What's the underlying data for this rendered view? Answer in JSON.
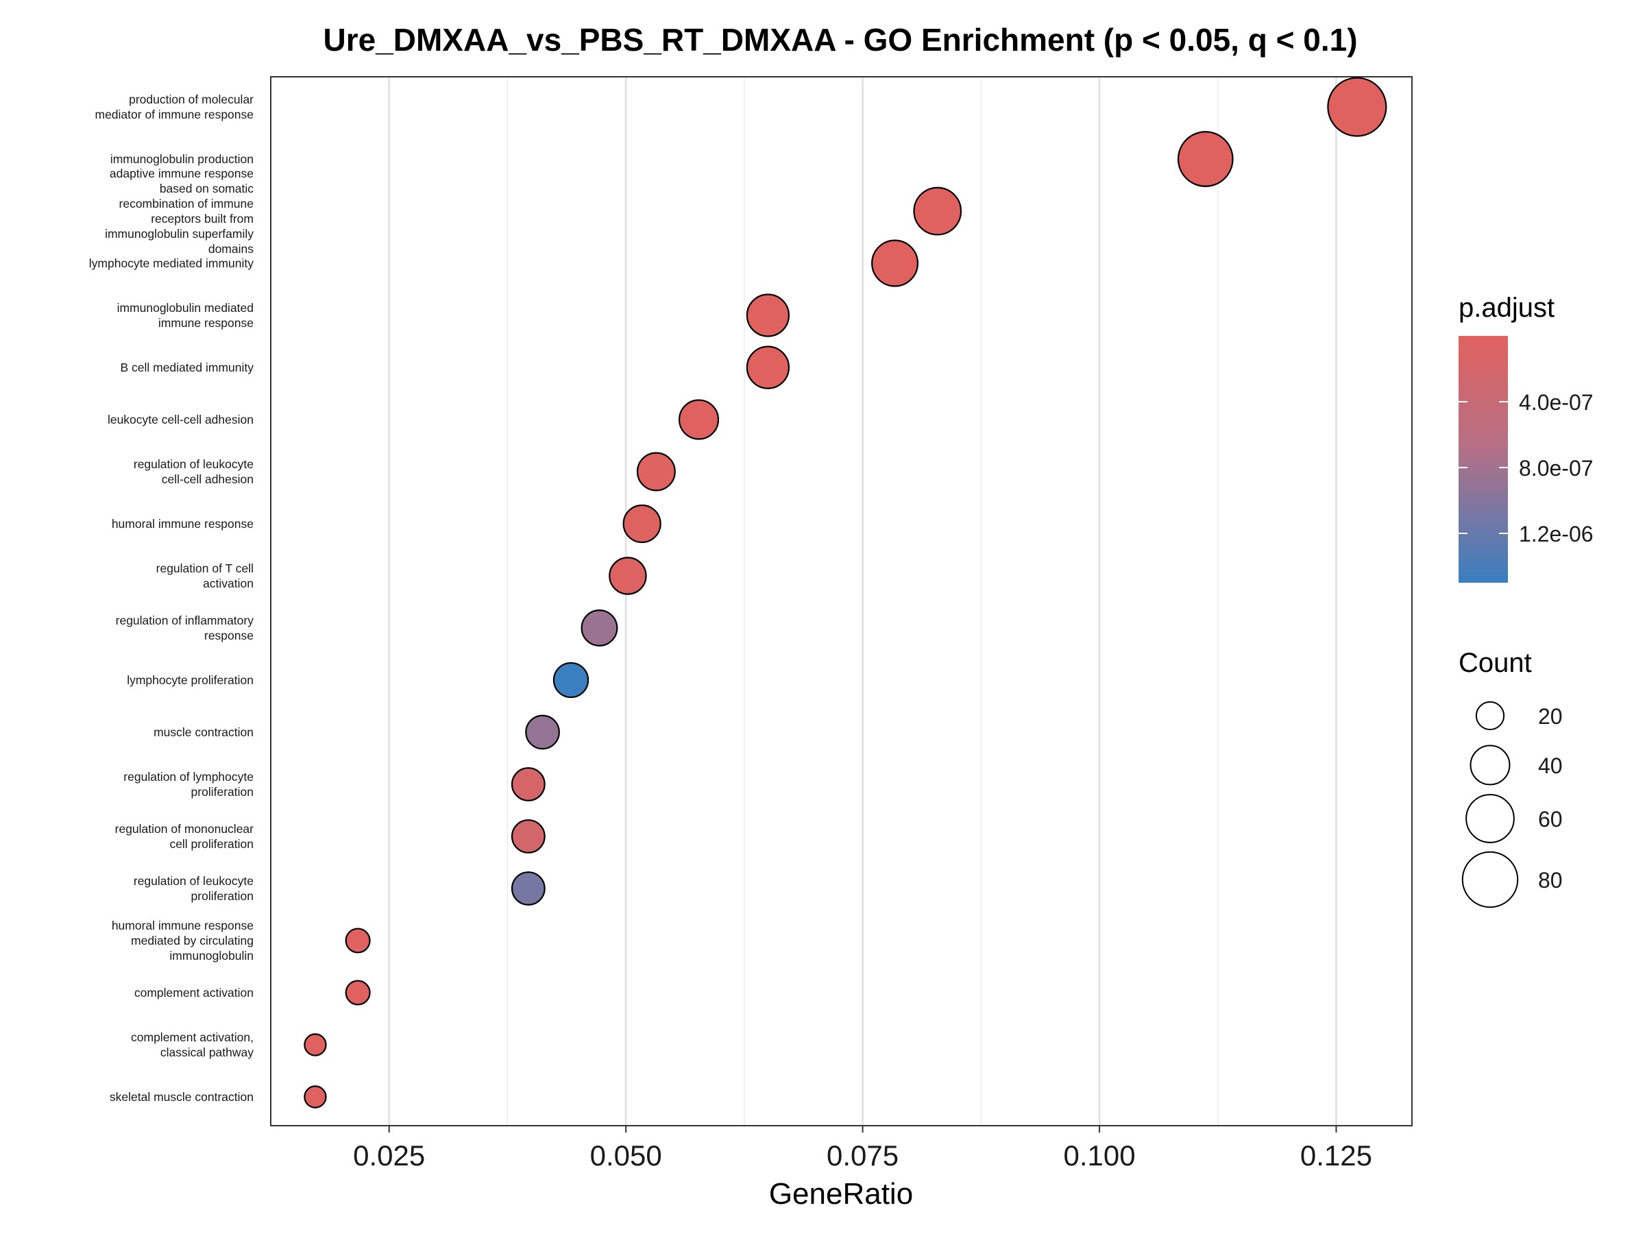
{
  "chart_data": {
    "type": "scatter",
    "title": "Ure_DMXAA_vs_PBS_RT_DMXAA - GO Enrichment (p < 0.05, q < 0.1)",
    "xlabel": "GeneRatio",
    "ylabel": "",
    "xlim": [
      0.0125,
      0.133
    ],
    "xticks": [
      {
        "value": 0.025,
        "label": "0.025"
      },
      {
        "value": 0.05,
        "label": "0.050"
      },
      {
        "value": 0.075,
        "label": "0.075"
      },
      {
        "value": 0.1,
        "label": "0.100"
      },
      {
        "value": 0.125,
        "label": "0.125"
      }
    ],
    "grid": true,
    "categories": [
      {
        "lines": [
          "production of molecular",
          "mediator of immune response"
        ],
        "x": 0.1272,
        "count": 89,
        "p_adjust": 1e-09
      },
      {
        "lines": [
          "immunoglobulin production"
        ],
        "x": 0.1112,
        "count": 78,
        "p_adjust": 1e-09
      },
      {
        "lines": [
          "adaptive immune response",
          "based on somatic",
          "recombination of immune",
          "receptors built from",
          "immunoglobulin superfamily",
          "domains"
        ],
        "x": 0.0829,
        "count": 58,
        "p_adjust": 2e-09
      },
      {
        "lines": [
          "lymphocyte mediated immunity"
        ],
        "x": 0.0784,
        "count": 55,
        "p_adjust": 3e-09
      },
      {
        "lines": [
          "immunoglobulin mediated",
          "immune response"
        ],
        "x": 0.065,
        "count": 46,
        "p_adjust": 5e-09
      },
      {
        "lines": [
          "B cell mediated immunity"
        ],
        "x": 0.065,
        "count": 46,
        "p_adjust": 5e-09
      },
      {
        "lines": [
          "leukocyte cell-cell adhesion"
        ],
        "x": 0.0577,
        "count": 40,
        "p_adjust": 2e-08
      },
      {
        "lines": [
          "regulation of leukocyte",
          "cell-cell adhesion"
        ],
        "x": 0.0532,
        "count": 37,
        "p_adjust": 3e-08
      },
      {
        "lines": [
          "humoral immune response"
        ],
        "x": 0.0517,
        "count": 36,
        "p_adjust": 4e-08
      },
      {
        "lines": [
          "regulation of T cell",
          "activation"
        ],
        "x": 0.0502,
        "count": 35,
        "p_adjust": 5e-08
      },
      {
        "lines": [
          "regulation of inflammatory",
          "response"
        ],
        "x": 0.0472,
        "count": 33,
        "p_adjust": 8.5e-07
      },
      {
        "lines": [
          "lymphocyte proliferation"
        ],
        "x": 0.0442,
        "count": 31,
        "p_adjust": 1.5e-06
      },
      {
        "lines": [
          "muscle contraction"
        ],
        "x": 0.0412,
        "count": 29,
        "p_adjust": 9e-07
      },
      {
        "lines": [
          "regulation of lymphocyte",
          "proliferation"
        ],
        "x": 0.0397,
        "count": 28,
        "p_adjust": 1.5e-07
      },
      {
        "lines": [
          "regulation of mononuclear",
          "cell proliferation"
        ],
        "x": 0.0397,
        "count": 28,
        "p_adjust": 2e-07
      },
      {
        "lines": [
          "regulation of leukocyte",
          "proliferation"
        ],
        "x": 0.0397,
        "count": 28,
        "p_adjust": 1.1e-06
      },
      {
        "lines": [
          "humoral immune response",
          "mediated by circulating",
          "immunoglobulin"
        ],
        "x": 0.0217,
        "count": 15,
        "p_adjust": 1e-08
      },
      {
        "lines": [
          "complement activation"
        ],
        "x": 0.0217,
        "count": 15,
        "p_adjust": 1e-08
      },
      {
        "lines": [
          "complement activation,",
          "classical pathway"
        ],
        "x": 0.0172,
        "count": 12,
        "p_adjust": 1e-08
      },
      {
        "lines": [
          "skeletal muscle contraction"
        ],
        "x": 0.0172,
        "count": 12,
        "p_adjust": 1e-08
      }
    ],
    "color_legend": {
      "title": "p.adjust",
      "domain": [
        0,
        1.5e-06
      ],
      "low_color": "#E0625F",
      "high_color": "#3A7FC0",
      "ticks": [
        {
          "value": 4e-07,
          "label": "4.0e-07"
        },
        {
          "value": 8e-07,
          "label": "8.0e-07"
        },
        {
          "value": 1.2e-06,
          "label": "1.2e-06"
        }
      ]
    },
    "size_legend": {
      "title": "Count",
      "entries": [
        {
          "value": 20,
          "label": "20"
        },
        {
          "value": 40,
          "label": "40"
        },
        {
          "value": 60,
          "label": "60"
        },
        {
          "value": 80,
          "label": "80"
        }
      ]
    }
  }
}
